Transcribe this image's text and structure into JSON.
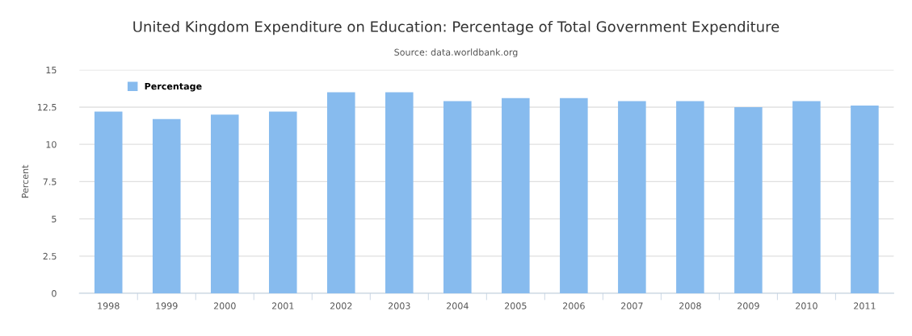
{
  "chart_data": {
    "type": "bar",
    "title": "United Kingdom Expenditure on Education: Percentage of Total Government Expenditure",
    "subtitle": "Source: data.worldbank.org",
    "ylabel": "Percent",
    "categories": [
      "1998",
      "1999",
      "2000",
      "2001",
      "2002",
      "2003",
      "2004",
      "2005",
      "2006",
      "2007",
      "2008",
      "2009",
      "2010",
      "2011"
    ],
    "series": [
      {
        "name": "Percentage",
        "color": "#87bbee",
        "values": [
          12.2,
          11.7,
          12.0,
          12.2,
          13.5,
          13.5,
          12.9,
          13.1,
          13.1,
          12.9,
          12.9,
          12.5,
          12.9,
          12.6
        ]
      }
    ],
    "ylim": [
      0,
      15
    ],
    "yticks": [
      0,
      2.5,
      5,
      7.5,
      10,
      12.5,
      15
    ],
    "grid": "y",
    "legend": "top left"
  }
}
